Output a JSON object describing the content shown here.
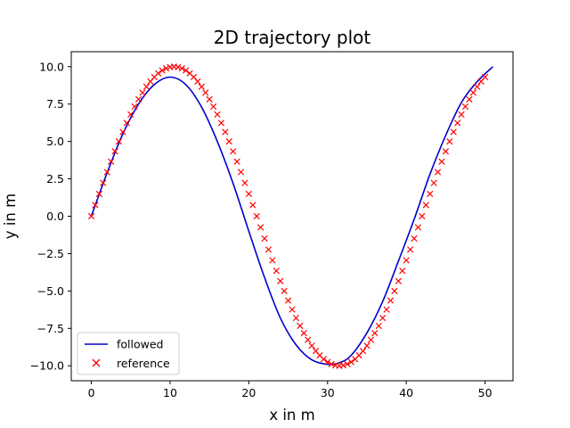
{
  "chart_data": {
    "type": "line",
    "title": "2D trajectory plot",
    "xlabel": "x in m",
    "ylabel": "y in m",
    "xlim": [
      -2.55,
      53.55
    ],
    "ylim": [
      -11.0,
      11.0
    ],
    "xticks": [
      0,
      10,
      20,
      30,
      40,
      50
    ],
    "yticks": [
      -10.0,
      -7.5,
      -5.0,
      -2.5,
      0.0,
      2.5,
      5.0,
      7.5,
      10.0
    ],
    "xtick_labels": [
      "0",
      "10",
      "20",
      "30",
      "40",
      "50"
    ],
    "ytick_labels": [
      "−10.0",
      "−7.5",
      "−5.0",
      "−2.5",
      "0.0",
      "2.5",
      "5.0",
      "7.5",
      "10.0"
    ],
    "grid": false,
    "legend": "lower-left",
    "series": [
      {
        "name": "followed",
        "style": "line",
        "color": "#0000cc",
        "x": [
          0.0,
          2.0,
          4.0,
          6.0,
          8.0,
          10.0,
          12.0,
          14.0,
          16.0,
          18.0,
          20.0,
          22.0,
          24.0,
          26.0,
          28.0,
          30.0,
          31.5,
          33.0,
          35.0,
          37.0,
          39.0,
          41.0,
          43.0,
          45.0,
          47.0,
          49.0,
          51.0
        ],
        "y": [
          0.0,
          2.9,
          5.5,
          7.5,
          8.8,
          9.3,
          8.8,
          7.3,
          5.0,
          2.2,
          -1.0,
          -4.1,
          -6.8,
          -8.6,
          -9.6,
          -9.9,
          -9.8,
          -9.3,
          -7.8,
          -5.7,
          -3.0,
          -0.2,
          2.8,
          5.4,
          7.6,
          9.0,
          10.0
        ]
      },
      {
        "name": "reference",
        "style": "x-markers",
        "color": "#ff0000",
        "x_start": 0.0,
        "x_end": 50.0,
        "x_step": 0.5,
        "y_amplitude": 10.0,
        "y_period": 42.0
      }
    ]
  }
}
